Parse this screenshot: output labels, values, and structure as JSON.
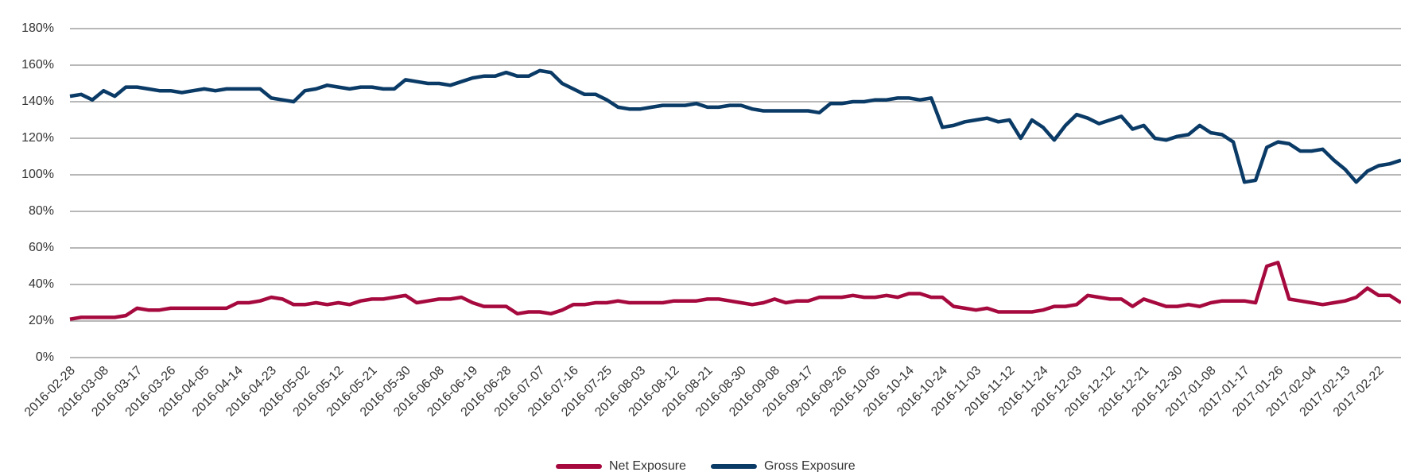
{
  "chart_data": {
    "type": "line",
    "categories": [
      "2016-02-28",
      null,
      null,
      "2016-03-08",
      null,
      null,
      "2016-03-17",
      null,
      null,
      "2016-03-26",
      null,
      null,
      "2016-04-05",
      null,
      null,
      "2016-04-14",
      null,
      null,
      "2016-04-23",
      null,
      null,
      "2016-05-02",
      null,
      null,
      "2016-05-12",
      null,
      null,
      "2016-05-21",
      null,
      null,
      "2016-05-30",
      null,
      null,
      "2016-06-08",
      null,
      null,
      "2016-06-19",
      null,
      null,
      "2016-06-28",
      null,
      null,
      "2016-07-07",
      null,
      null,
      "2016-07-16",
      null,
      null,
      "2016-07-25",
      null,
      null,
      "2016-08-03",
      null,
      null,
      "2016-08-12",
      null,
      null,
      "2016-08-21",
      null,
      null,
      "2016-08-30",
      null,
      null,
      "2016-09-08",
      null,
      null,
      "2016-09-17",
      null,
      null,
      "2016-09-26",
      null,
      null,
      "2016-10-05",
      null,
      null,
      "2016-10-14",
      null,
      null,
      "2016-10-24",
      null,
      null,
      "2016-11-03",
      null,
      null,
      "2016-11-12",
      null,
      null,
      "2016-11-24",
      null,
      null,
      "2016-12-03",
      null,
      null,
      "2016-12-12",
      null,
      null,
      "2016-12-21",
      null,
      null,
      "2016-12-30",
      null,
      null,
      "2017-01-08",
      null,
      null,
      "2017-01-17",
      null,
      null,
      "2017-01-26",
      null,
      null,
      "2017-02-04",
      null,
      null,
      "2017-02-13",
      null,
      null,
      "2017-02-22",
      null,
      null
    ],
    "series": [
      {
        "name": "Net Exposure",
        "color": "#a6093d",
        "values": [
          21,
          22,
          22,
          22,
          22,
          23,
          27,
          26,
          26,
          27,
          27,
          27,
          27,
          27,
          27,
          30,
          30,
          31,
          33,
          32,
          29,
          29,
          30,
          29,
          30,
          29,
          31,
          32,
          32,
          33,
          34,
          30,
          31,
          32,
          32,
          33,
          30,
          28,
          28,
          28,
          24,
          25,
          25,
          24,
          26,
          29,
          29,
          30,
          30,
          31,
          30,
          30,
          30,
          30,
          31,
          31,
          31,
          32,
          32,
          31,
          30,
          29,
          30,
          32,
          30,
          31,
          31,
          33,
          33,
          33,
          34,
          33,
          33,
          34,
          33,
          35,
          35,
          33,
          33,
          28,
          27,
          26,
          27,
          25,
          25,
          25,
          25,
          26,
          28,
          28,
          29,
          34,
          33,
          32,
          32,
          28,
          32,
          30,
          28,
          28,
          29,
          28,
          30,
          31,
          31,
          31,
          30,
          50,
          52,
          32,
          31,
          30,
          29,
          30,
          31,
          33,
          38,
          34,
          34,
          30
        ]
      },
      {
        "name": "Gross Exposure",
        "color": "#0a3a66",
        "values": [
          143,
          144,
          141,
          146,
          143,
          148,
          148,
          147,
          146,
          146,
          145,
          146,
          147,
          146,
          147,
          147,
          147,
          147,
          142,
          141,
          140,
          146,
          147,
          149,
          148,
          147,
          148,
          148,
          147,
          147,
          152,
          151,
          150,
          150,
          149,
          151,
          153,
          154,
          154,
          156,
          154,
          154,
          157,
          156,
          150,
          147,
          144,
          144,
          141,
          137,
          136,
          136,
          137,
          138,
          138,
          138,
          139,
          137,
          137,
          138,
          138,
          136,
          135,
          135,
          135,
          135,
          135,
          134,
          139,
          139,
          140,
          140,
          141,
          141,
          142,
          142,
          141,
          142,
          126,
          127,
          129,
          130,
          131,
          129,
          130,
          120,
          130,
          126,
          119,
          127,
          133,
          131,
          128,
          130,
          132,
          125,
          127,
          120,
          119,
          121,
          122,
          127,
          123,
          122,
          118,
          96,
          97,
          115,
          118,
          117,
          113,
          113,
          114,
          108,
          103,
          96,
          102,
          105,
          106,
          108
        ]
      }
    ],
    "ylim": [
      0,
      180
    ],
    "yticks": [
      {
        "value": 0,
        "label": "0%"
      },
      {
        "value": 20,
        "label": "20%"
      },
      {
        "value": 40,
        "label": "40%"
      },
      {
        "value": 60,
        "label": "60%"
      },
      {
        "value": 80,
        "label": "80%"
      },
      {
        "value": 100,
        "label": "100%"
      },
      {
        "value": 120,
        "label": "120%"
      },
      {
        "value": 140,
        "label": "140%"
      },
      {
        "value": 160,
        "label": "160%"
      },
      {
        "value": 180,
        "label": "180%"
      }
    ],
    "grid": true,
    "legend": "bottom"
  }
}
